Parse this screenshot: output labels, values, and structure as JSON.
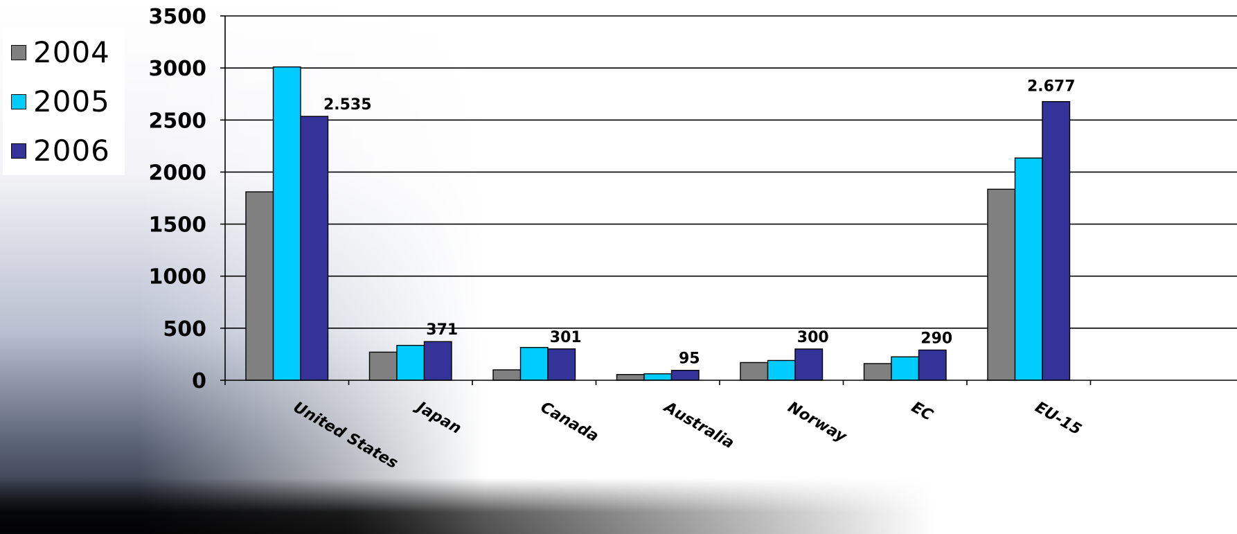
{
  "chart_data": {
    "type": "bar",
    "categories": [
      "United States",
      "Japan",
      "Canada",
      "Australia",
      "Norway",
      "EC",
      "EU-15"
    ],
    "series": [
      {
        "name": "2004",
        "color": "#808080",
        "values": [
          1810,
          270,
          100,
          55,
          170,
          160,
          1835
        ]
      },
      {
        "name": "2005",
        "color": "#00ccff",
        "values": [
          3010,
          335,
          315,
          62,
          190,
          225,
          2135
        ]
      },
      {
        "name": "2006",
        "color": "#333399",
        "values": [
          2535,
          371,
          301,
          95,
          300,
          290,
          2677
        ]
      }
    ],
    "data_labels": [
      "2.535",
      "371",
      "301",
      "95",
      "300",
      "290",
      "2.677"
    ],
    "y_ticks": [
      "0",
      "500",
      "1000",
      "1500",
      "2000",
      "2500",
      "3000",
      "3500"
    ],
    "ylim": [
      0,
      3500
    ],
    "grid": true,
    "legend_position": "top-left",
    "title": "",
    "xlabel": "",
    "ylabel": ""
  }
}
